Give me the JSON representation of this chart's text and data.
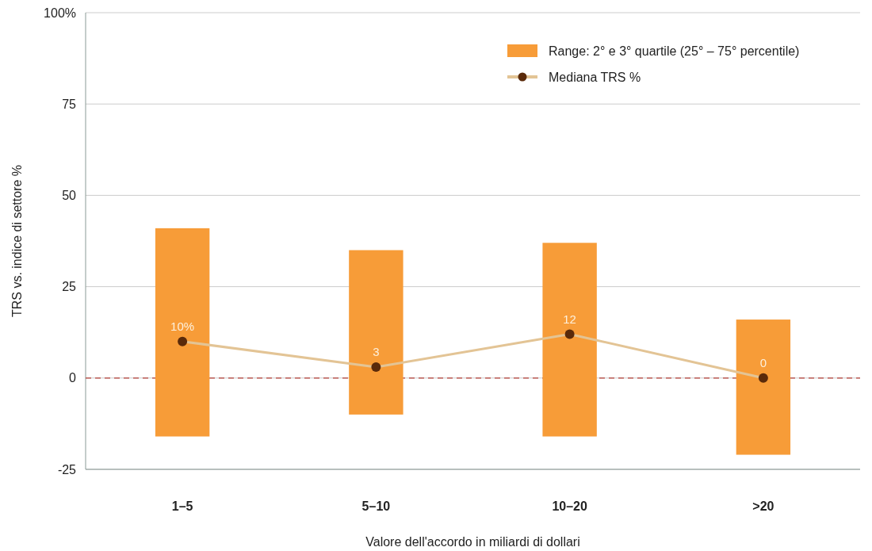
{
  "chart_data": {
    "type": "bar",
    "xlabel": "Valore dell'accordo in miliardi di dollari",
    "ylabel": "TRS vs. indice di settore %",
    "categories": [
      "1–5",
      "5–10",
      "10–20",
      ">20"
    ],
    "series": [
      {
        "name": "Range: 2° e 3° quartile (25° – 75° percentile)",
        "color": "#f79c38",
        "base": [
          -16,
          -10,
          -16,
          -21
        ],
        "values": [
          57,
          45,
          53,
          37
        ]
      },
      {
        "type": "line",
        "name": "Mediana TRS %",
        "color": "#e3c495",
        "values": [
          10,
          3,
          12,
          0
        ],
        "value_labels": [
          "10%",
          "3",
          "12",
          "0"
        ],
        "marker": "circle"
      }
    ],
    "ylim": [
      -25,
      100
    ],
    "yticks": [
      -25,
      0,
      25,
      50,
      75,
      {
        "value": 100,
        "label": "100%"
      }
    ],
    "grid": "y",
    "legend": "top right",
    "ref_lines": [
      {
        "axis": "y",
        "value": 0,
        "color": "#b5413a",
        "line_style": "dashed"
      }
    ]
  }
}
